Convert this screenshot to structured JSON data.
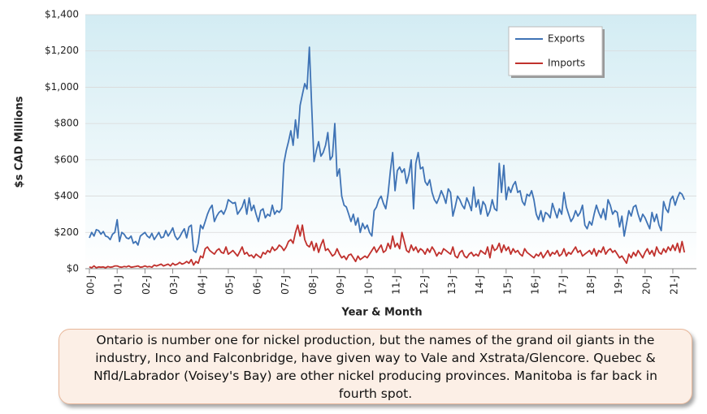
{
  "chart_data": {
    "type": "line",
    "y_label": "$s CAD Millions",
    "x_label": "Year & Month",
    "caption": "Ontario is number one for nickel production, but the names of the grand oil giants in the industry, Inco and Falconbridge, have given way to Vale and Xstrata/Glencore. Quebec & Nfld/Labrador (Voisey's Bay) are other nickel producing provinces. Manitoba is far back in fourth spot.",
    "ylim": [
      0,
      1400
    ],
    "yticks": [
      {
        "value": 0,
        "label": "$0"
      },
      {
        "value": 200,
        "label": "$200"
      },
      {
        "value": 400,
        "label": "$400"
      },
      {
        "value": 600,
        "label": "$600"
      },
      {
        "value": 800,
        "label": "$800"
      },
      {
        "value": 1000,
        "label": "$1,000"
      },
      {
        "value": 1200,
        "label": "$1,200"
      },
      {
        "value": 1400,
        "label": "$1,400"
      }
    ],
    "grid": true,
    "legend": "upper right",
    "categories": [
      "00-J",
      null,
      null,
      null,
      null,
      null,
      null,
      null,
      null,
      null,
      null,
      null,
      "01-J",
      null,
      null,
      null,
      null,
      null,
      null,
      null,
      null,
      null,
      null,
      null,
      "02-J",
      null,
      null,
      null,
      null,
      null,
      null,
      null,
      null,
      null,
      null,
      null,
      "03-J",
      null,
      null,
      null,
      null,
      null,
      null,
      null,
      null,
      null,
      null,
      null,
      "04-J",
      null,
      null,
      null,
      null,
      null,
      null,
      null,
      null,
      null,
      null,
      null,
      "05-J",
      null,
      null,
      null,
      null,
      null,
      null,
      null,
      null,
      null,
      null,
      null,
      "06-J",
      null,
      null,
      null,
      null,
      null,
      null,
      null,
      null,
      null,
      null,
      null,
      "07-J",
      null,
      null,
      null,
      null,
      null,
      null,
      null,
      null,
      null,
      null,
      null,
      "08-J",
      null,
      null,
      null,
      null,
      null,
      null,
      null,
      null,
      null,
      null,
      null,
      "09-J",
      null,
      null,
      null,
      null,
      null,
      null,
      null,
      null,
      null,
      null,
      null,
      "10-J",
      null,
      null,
      null,
      null,
      null,
      null,
      null,
      null,
      null,
      null,
      null,
      "11-J",
      null,
      null,
      null,
      null,
      null,
      null,
      null,
      null,
      null,
      null,
      null,
      "12-J",
      null,
      null,
      null,
      null,
      null,
      null,
      null,
      null,
      null,
      null,
      null,
      "13-J",
      null,
      null,
      null,
      null,
      null,
      null,
      null,
      null,
      null,
      null,
      null,
      "14-J",
      null,
      null,
      null,
      null,
      null,
      null,
      null,
      null,
      null,
      null,
      null,
      "15-J",
      null,
      null,
      null,
      null,
      null,
      null,
      null,
      null,
      null,
      null,
      null,
      "16-J",
      null,
      null,
      null,
      null,
      null,
      null,
      null,
      null,
      null,
      null,
      null,
      "17-J",
      null,
      null,
      null,
      null,
      null,
      null,
      null,
      null,
      null,
      null,
      null,
      "18-J",
      null,
      null,
      null,
      null,
      null,
      null,
      null,
      null,
      null,
      null,
      null,
      "19-J",
      null,
      null,
      null,
      null,
      null,
      null,
      null,
      null,
      null,
      null,
      null,
      "20-J",
      null,
      null,
      null,
      null,
      null,
      null,
      null,
      null,
      null,
      null,
      null,
      "21-J",
      null,
      null,
      null,
      null,
      null
    ],
    "series": [
      {
        "name": "Exports",
        "color": "#3f73b5",
        "values": [
          170,
          200,
          180,
          215,
          210,
          190,
          205,
          180,
          175,
          160,
          190,
          200,
          270,
          150,
          200,
          190,
          170,
          165,
          180,
          140,
          150,
          130,
          180,
          190,
          200,
          180,
          170,
          195,
          160,
          180,
          200,
          170,
          175,
          210,
          180,
          200,
          225,
          180,
          160,
          175,
          200,
          220,
          170,
          230,
          240,
          100,
          90,
          140,
          240,
          220,
          260,
          300,
          330,
          350,
          260,
          290,
          310,
          320,
          300,
          330,
          380,
          370,
          360,
          365,
          300,
          320,
          340,
          380,
          300,
          390,
          320,
          350,
          300,
          260,
          320,
          330,
          280,
          300,
          290,
          350,
          300,
          320,
          310,
          330,
          580,
          650,
          700,
          760,
          680,
          820,
          720,
          900,
          960,
          1020,
          990,
          1220,
          900,
          590,
          650,
          700,
          620,
          640,
          680,
          750,
          600,
          620,
          800,
          510,
          550,
          400,
          350,
          340,
          300,
          260,
          300,
          240,
          280,
          200,
          250,
          220,
          240,
          200,
          180,
          320,
          340,
          380,
          400,
          360,
          330,
          410,
          540,
          640,
          430,
          540,
          560,
          530,
          550,
          470,
          520,
          600,
          330,
          580,
          640,
          550,
          560,
          480,
          460,
          490,
          420,
          380,
          360,
          390,
          430,
          400,
          360,
          440,
          420,
          290,
          340,
          400,
          380,
          350,
          330,
          390,
          360,
          320,
          450,
          340,
          380,
          300,
          370,
          350,
          290,
          320,
          380,
          330,
          320,
          580,
          420,
          570,
          380,
          450,
          420,
          460,
          480,
          420,
          430,
          370,
          350,
          410,
          400,
          430,
          380,
          300,
          270,
          320,
          260,
          310,
          300,
          280,
          360,
          320,
          280,
          330,
          300,
          420,
          340,
          300,
          260,
          280,
          320,
          290,
          310,
          350,
          240,
          220,
          260,
          240,
          300,
          350,
          310,
          280,
          330,
          270,
          380,
          350,
          300,
          320,
          310,
          230,
          290,
          180,
          250,
          320,
          290,
          340,
          350,
          300,
          260,
          300,
          280,
          250,
          220,
          310,
          260,
          300,
          240,
          210,
          370,
          330,
          310,
          380,
          400,
          350,
          390,
          420,
          410,
          380
        ]
      },
      {
        "name": "Imports",
        "color": "#c0312d",
        "values": [
          10,
          5,
          15,
          5,
          10,
          8,
          10,
          5,
          12,
          8,
          10,
          15,
          15,
          10,
          8,
          12,
          10,
          15,
          8,
          10,
          12,
          15,
          8,
          10,
          15,
          10,
          12,
          8,
          20,
          15,
          20,
          25,
          15,
          20,
          25,
          15,
          30,
          20,
          25,
          35,
          25,
          30,
          40,
          30,
          50,
          20,
          40,
          30,
          70,
          60,
          110,
          120,
          100,
          90,
          80,
          100,
          110,
          90,
          85,
          120,
          80,
          90,
          100,
          85,
          70,
          95,
          120,
          80,
          90,
          70,
          75,
          60,
          80,
          70,
          60,
          90,
          80,
          100,
          90,
          120,
          100,
          110,
          130,
          120,
          100,
          120,
          150,
          160,
          140,
          200,
          240,
          180,
          240,
          160,
          130,
          120,
          150,
          100,
          140,
          90,
          130,
          160,
          100,
          110,
          90,
          70,
          80,
          110,
          80,
          60,
          70,
          50,
          75,
          80,
          60,
          40,
          70,
          50,
          60,
          70,
          60,
          80,
          100,
          120,
          90,
          110,
          130,
          90,
          100,
          140,
          110,
          180,
          120,
          140,
          110,
          200,
          150,
          100,
          90,
          130,
          100,
          120,
          90,
          110,
          100,
          80,
          110,
          90,
          120,
          100,
          70,
          90,
          80,
          110,
          100,
          90,
          80,
          120,
          70,
          60,
          90,
          100,
          70,
          60,
          80,
          90,
          70,
          80,
          70,
          100,
          90,
          80,
          120,
          60,
          130,
          100,
          110,
          140,
          90,
          130,
          100,
          120,
          80,
          110,
          90,
          100,
          80,
          70,
          110,
          90,
          80,
          70,
          60,
          80,
          70,
          90,
          60,
          80,
          100,
          70,
          90,
          80,
          100,
          70,
          80,
          110,
          70,
          90,
          80,
          100,
          120,
          90,
          100,
          70,
          80,
          90,
          100,
          80,
          110,
          70,
          100,
          90,
          120,
          80,
          100,
          110,
          90,
          100,
          80,
          60,
          70,
          50,
          30,
          80,
          60,
          90,
          70,
          100,
          80,
          60,
          90,
          110,
          80,
          100,
          70,
          120,
          90,
          80,
          110,
          90,
          120,
          100,
          130,
          100,
          140,
          90,
          150,
          90
        ]
      }
    ]
  }
}
